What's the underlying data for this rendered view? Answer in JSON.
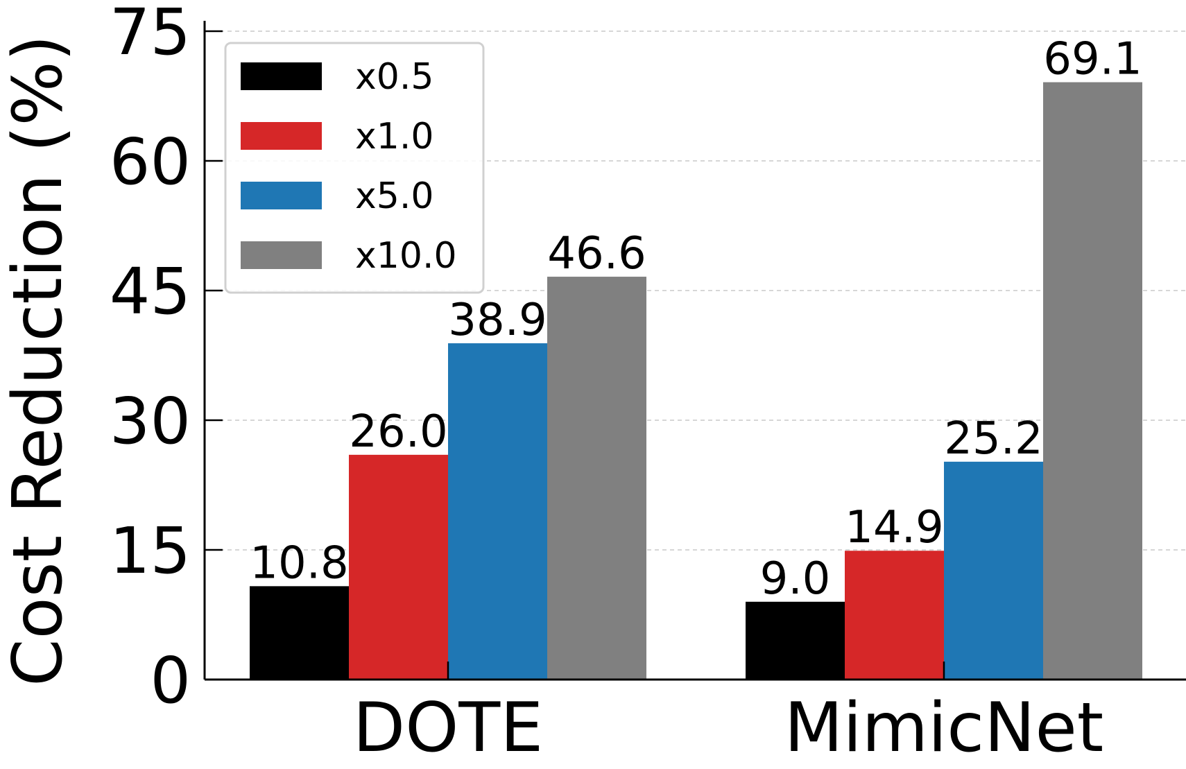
{
  "chart_data": {
    "type": "bar",
    "title": "",
    "xlabel": "",
    "ylabel": "Cost Reduction (%)",
    "categories": [
      "DOTE",
      "MimicNet"
    ],
    "series": [
      {
        "name": "x0.5",
        "color": "#000000",
        "values": [
          10.8,
          9.0
        ],
        "labels": [
          "10.8",
          "9.0"
        ]
      },
      {
        "name": "x1.0",
        "color": "#d62728",
        "values": [
          26.0,
          14.9
        ],
        "labels": [
          "26.0",
          "14.9"
        ]
      },
      {
        "name": "x5.0",
        "color": "#1f77b4",
        "values": [
          38.9,
          25.2
        ],
        "labels": [
          "38.9",
          "25.2"
        ]
      },
      {
        "name": "x10.0",
        "color": "#808080",
        "values": [
          46.6,
          69.1
        ],
        "labels": [
          "46.6",
          "69.1"
        ]
      }
    ],
    "ylim": [
      0,
      75
    ],
    "yticks": [
      "0",
      "15",
      "30",
      "45",
      "60",
      "75"
    ],
    "grid": true,
    "legend": "top-left"
  }
}
